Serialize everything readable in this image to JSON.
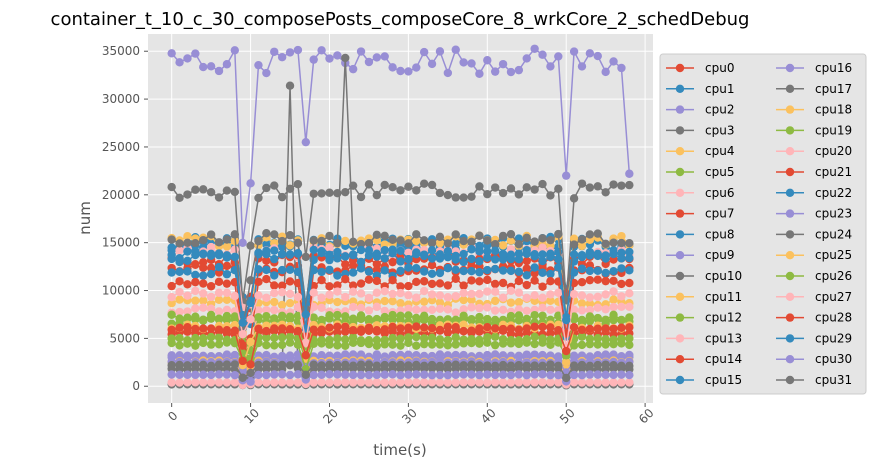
{
  "chart_data": {
    "type": "line",
    "title": "container_t_10_c_30_composePosts_composeCore_8_wrkCore_2_schedDebug",
    "xlabel": "time(s)",
    "ylabel": "num",
    "xlim": [
      -3,
      61
    ],
    "ylim": [
      -1750,
      36800
    ],
    "xticks": [
      "0",
      "10",
      "20",
      "30",
      "40",
      "50",
      "60"
    ],
    "yticks": [
      "0",
      "5000",
      "10000",
      "15000",
      "20000",
      "25000",
      "30000",
      "35000"
    ],
    "grid": true,
    "legend_position": "right-outside",
    "x_start": 0,
    "x_end": 58,
    "series": [
      {
        "name": "cpu0",
        "color": "#E24A33",
        "level": 12200
      },
      {
        "name": "cpu1",
        "color": "#348ABD",
        "level": 14800
      },
      {
        "name": "cpu2",
        "color": "#988ED5",
        "level": 3000
      },
      {
        "name": "cpu3",
        "color": "#777777",
        "level": 1800
      },
      {
        "name": "cpu4",
        "color": "#FBC15E",
        "level": 8800
      },
      {
        "name": "cpu5",
        "color": "#8EBA42",
        "level": 6800
      },
      {
        "name": "cpu6",
        "color": "#FFB5B8",
        "level": 8000
      },
      {
        "name": "cpu7",
        "color": "#E24A33",
        "level": 5600
      },
      {
        "name": "cpu8",
        "color": "#348ABD",
        "level": 15000
      },
      {
        "name": "cpu9",
        "color": "#988ED5",
        "level": 3200
      },
      {
        "name": "cpu10",
        "color": "#777777",
        "level": 20400
      },
      {
        "name": "cpu11",
        "color": "#FBC15E",
        "level": 15200
      },
      {
        "name": "cpu12",
        "color": "#8EBA42",
        "level": 5000
      },
      {
        "name": "cpu13",
        "color": "#FFB5B8",
        "level": 14000
      },
      {
        "name": "cpu14",
        "color": "#E24A33",
        "level": 13200
      },
      {
        "name": "cpu15",
        "color": "#348ABD",
        "level": 12000
      },
      {
        "name": "cpu16",
        "color": "#988ED5",
        "level": 34000
      },
      {
        "name": "cpu17",
        "color": "#777777",
        "level": 200
      },
      {
        "name": "cpu18",
        "color": "#FBC15E",
        "level": 2600
      },
      {
        "name": "cpu19",
        "color": "#8EBA42",
        "level": 7200
      },
      {
        "name": "cpu20",
        "color": "#FFB5B8",
        "level": 400
      },
      {
        "name": "cpu21",
        "color": "#E24A33",
        "level": 10800
      },
      {
        "name": "cpu22",
        "color": "#348ABD",
        "level": 13500
      },
      {
        "name": "cpu23",
        "color": "#988ED5",
        "level": 2500
      },
      {
        "name": "cpu24",
        "color": "#777777",
        "level": 15400
      },
      {
        "name": "cpu25",
        "color": "#FBC15E",
        "level": 6200
      },
      {
        "name": "cpu26",
        "color": "#8EBA42",
        "level": 4400
      },
      {
        "name": "cpu27",
        "color": "#FFB5B8",
        "level": 9600
      },
      {
        "name": "cpu28",
        "color": "#E24A33",
        "level": 6000
      },
      {
        "name": "cpu29",
        "color": "#348ABD",
        "level": 13800
      },
      {
        "name": "cpu30",
        "color": "#988ED5",
        "level": 1200
      },
      {
        "name": "cpu31",
        "color": "#777777",
        "level": 2200
      }
    ]
  }
}
